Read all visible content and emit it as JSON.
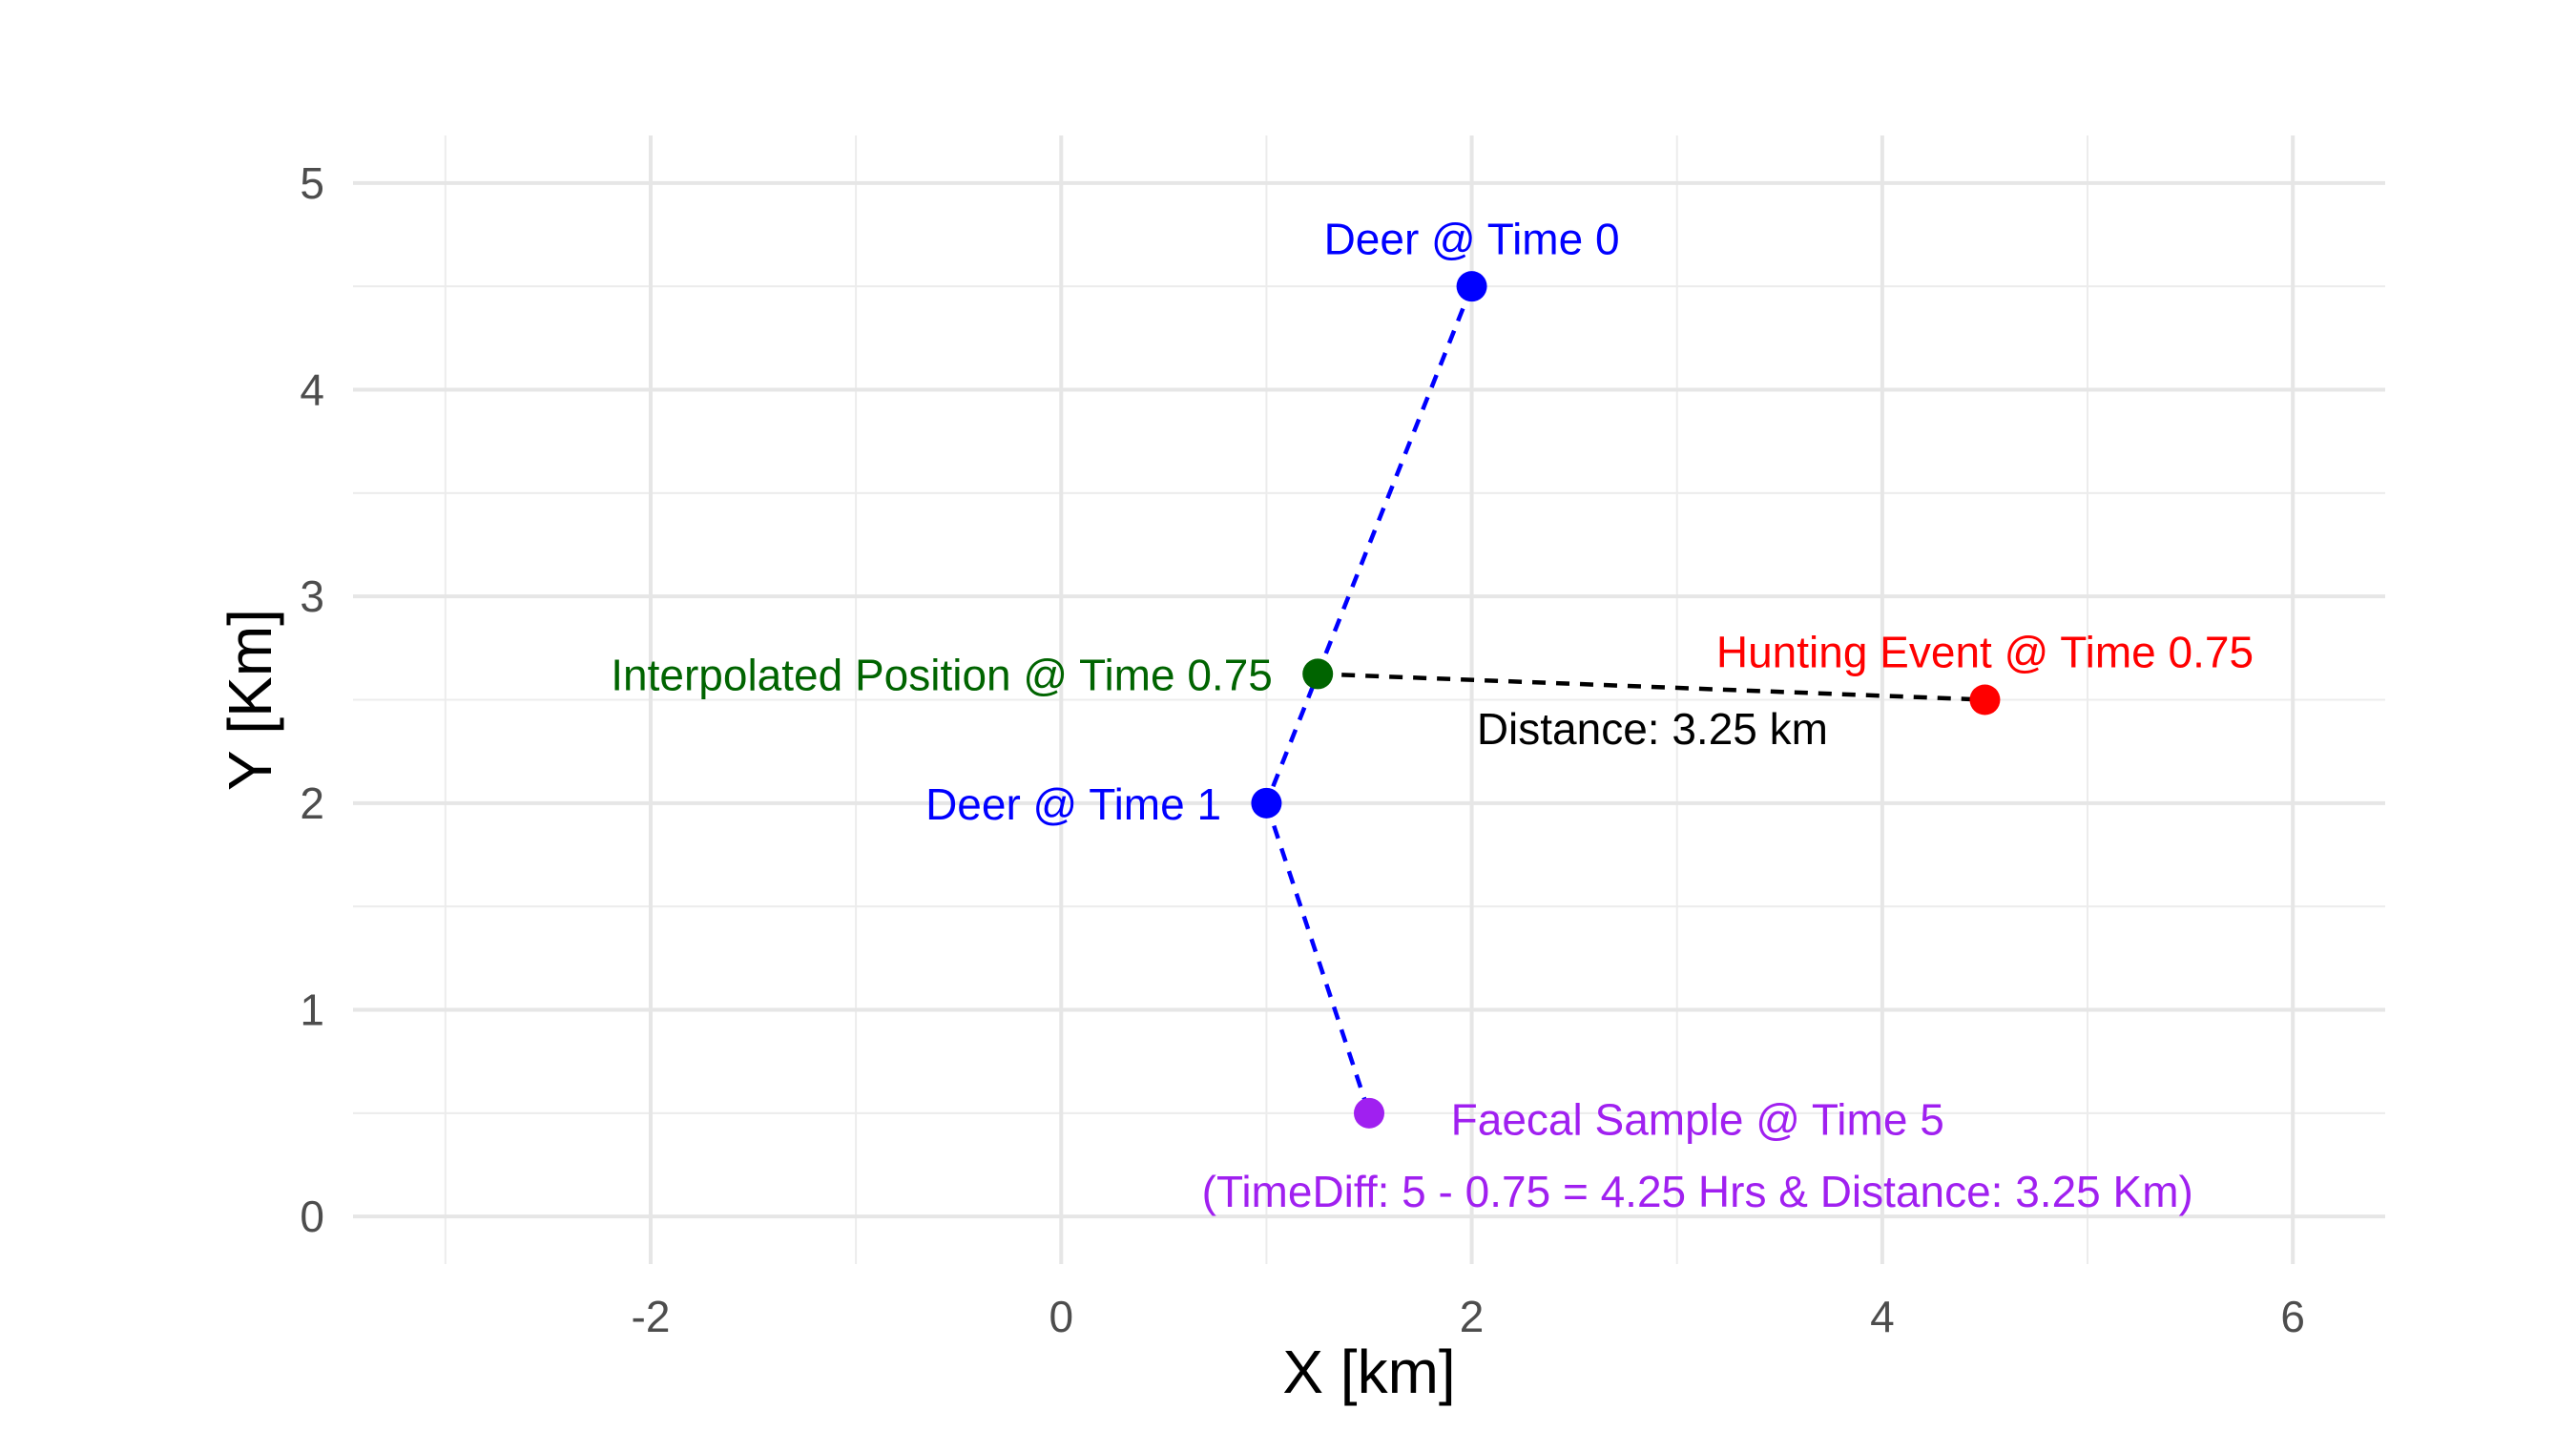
{
  "chart_data": {
    "type": "scatter",
    "title": "",
    "xlabel": "X [km]",
    "ylabel": "Y [Km]",
    "xlim": [
      -3.45,
      6.45
    ],
    "ylim": [
      -0.23,
      5.23
    ],
    "x_ticks": [
      -2,
      0,
      2,
      4,
      6
    ],
    "x_tick_labels": [
      "-2",
      "0",
      "2",
      "4",
      "6"
    ],
    "y_ticks": [
      0,
      1,
      2,
      3,
      4,
      5
    ],
    "y_tick_labels": [
      "0",
      "1",
      "2",
      "3",
      "4",
      "5"
    ],
    "grid": true,
    "legend": "none",
    "points": [
      {
        "x": 2,
        "y": 4.5,
        "color": "#0000ff"
      },
      {
        "x": 1,
        "y": 2,
        "color": "#0000ff"
      },
      {
        "x": 1.25,
        "y": 2.625,
        "color": "#006400"
      },
      {
        "x": 4.5,
        "y": 2.5,
        "color": "#ff0000"
      },
      {
        "x": 1.5,
        "y": 0.5,
        "color": "#a020f0"
      }
    ],
    "segments": [
      {
        "from": [
          2,
          4.5
        ],
        "to": [
          1,
          2
        ],
        "color": "#0000ff",
        "dash": "dashed"
      },
      {
        "from": [
          1,
          2
        ],
        "to": [
          1.5,
          0.5
        ],
        "color": "#0000ff",
        "dash": "dashed"
      },
      {
        "from": [
          1.25,
          2.625
        ],
        "to": [
          4.5,
          2.5
        ],
        "color": "#000000",
        "dash": "dashed"
      }
    ],
    "annotations": [
      {
        "text": "Deer @ Time 0",
        "x": 2,
        "y": 4.73,
        "anchor": "middle",
        "color": "#0000ff"
      },
      {
        "text": "Deer @ Time 1",
        "x": 0.78,
        "y": 1.995,
        "anchor": "end",
        "color": "#0000ff"
      },
      {
        "text": "Interpolated Position @ Time 0.75",
        "x": 1.03,
        "y": 2.62,
        "anchor": "end",
        "color": "#006400"
      },
      {
        "text": "Hunting Event @ Time 0.75",
        "x": 4.5,
        "y": 2.73,
        "anchor": "middle",
        "color": "#ff0000"
      },
      {
        "text": "Distance: 3.25 km",
        "x": 2.88,
        "y": 2.36,
        "anchor": "middle",
        "color": "#000000"
      },
      {
        "text": "Faecal Sample @ Time 5",
        "x": 3.1,
        "y": 0.47,
        "anchor": "middle",
        "color": "#a020f0"
      },
      {
        "text": "(TimeDiff: 5 - 0.75 = 4.25 Hrs & Distance: 3.25 Km)",
        "x": 3.1,
        "y": 0.12,
        "anchor": "middle",
        "color": "#a020f0"
      }
    ]
  }
}
